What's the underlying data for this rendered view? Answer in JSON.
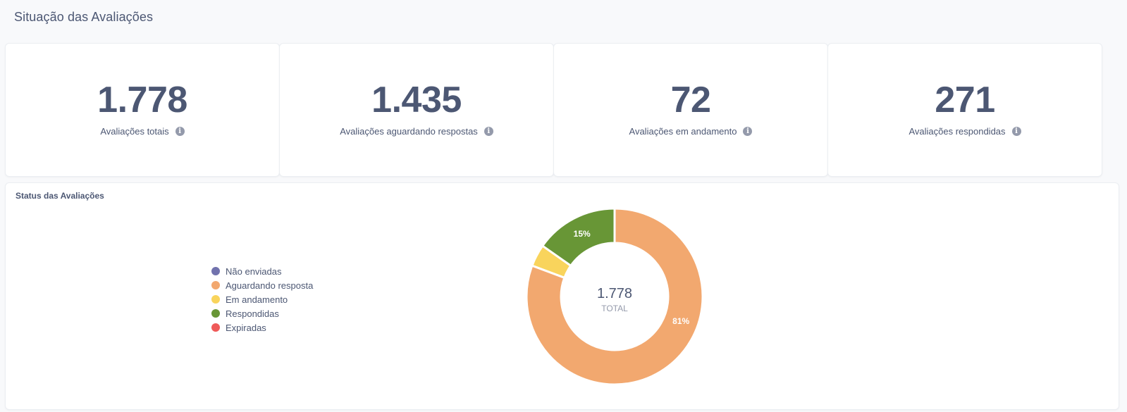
{
  "page": {
    "title": "Situação das Avaliações"
  },
  "kpis": [
    {
      "value": "1.778",
      "label": "Avaliações totais"
    },
    {
      "value": "1.435",
      "label": "Avaliações aguardando respostas"
    },
    {
      "value": "72",
      "label": "Avaliações em andamento"
    },
    {
      "value": "271",
      "label": "Avaliações respondidas"
    }
  ],
  "icons": {
    "info": "info-circle-icon"
  },
  "chart": {
    "title": "Status das Avaliações",
    "center_value": "1.778",
    "center_label": "TOTAL"
  },
  "chart_data": {
    "type": "pie",
    "donut": true,
    "legend_position": "left",
    "categories": [
      "Não enviadas",
      "Aguardando resposta",
      "Em andamento",
      "Respondidas",
      "Expiradas"
    ],
    "values": [
      0,
      1435,
      72,
      271,
      0
    ],
    "colors": [
      "#7172ad",
      "#f2a86f",
      "#f9d45c",
      "#689636",
      "#ef5a59"
    ],
    "data_labels": [
      "",
      "81%",
      "",
      "15%",
      ""
    ],
    "total": 1778
  }
}
